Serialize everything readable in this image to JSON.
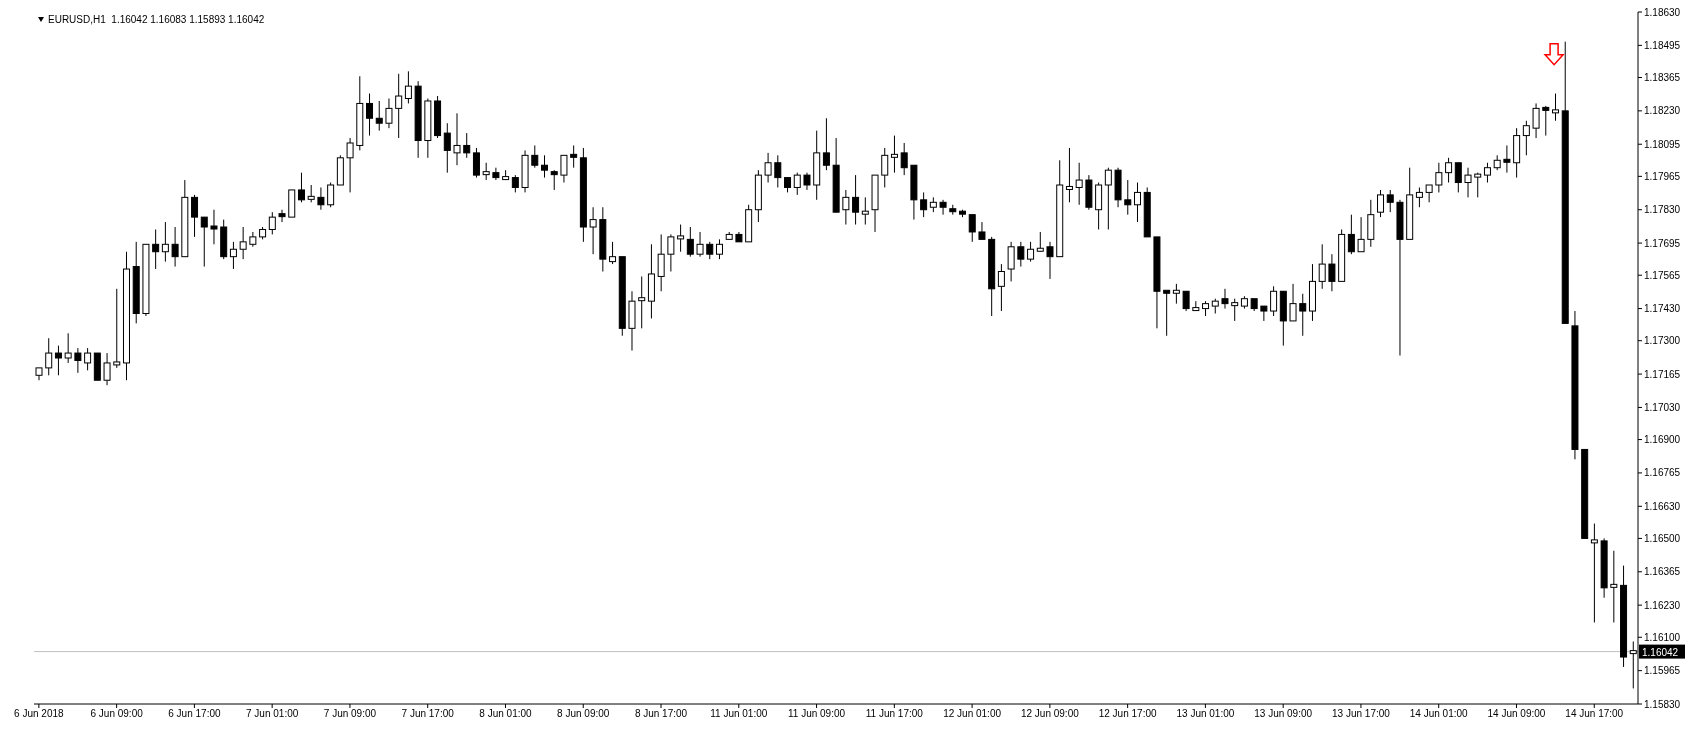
{
  "chart_data": {
    "type": "candlestick",
    "title": "EURUSD,H1  1.16042 1.16083 1.15893 1.16042",
    "color": "#000000",
    "categories": [
      "6 Jun 2018",
      null,
      null,
      null,
      null,
      null,
      null,
      null,
      "6 Jun 09:00",
      null,
      null,
      null,
      null,
      null,
      null,
      null,
      "6 Jun 17:00",
      null,
      null,
      null,
      null,
      null,
      null,
      null,
      "7 Jun 01:00",
      null,
      null,
      null,
      null,
      null,
      null,
      null,
      "7 Jun 09:00",
      null,
      null,
      null,
      null,
      null,
      null,
      null,
      "7 Jun 17:00",
      null,
      null,
      null,
      null,
      null,
      null,
      null,
      "8 Jun 01:00",
      null,
      null,
      null,
      null,
      null,
      null,
      null,
      "8 Jun 09:00",
      null,
      null,
      null,
      null,
      null,
      null,
      null,
      "8 Jun 17:00",
      null,
      null,
      null,
      null,
      null,
      null,
      null,
      "11 Jun 01:00",
      null,
      null,
      null,
      null,
      null,
      null,
      null,
      "11 Jun 09:00",
      null,
      null,
      null,
      null,
      null,
      null,
      null,
      "11 Jun 17:00",
      null,
      null,
      null,
      null,
      null,
      null,
      null,
      "12 Jun 01:00",
      null,
      null,
      null,
      null,
      null,
      null,
      null,
      "12 Jun 09:00",
      null,
      null,
      null,
      null,
      null,
      null,
      null,
      "12 Jun 17:00",
      null,
      null,
      null,
      null,
      null,
      null,
      null,
      "13 Jun 01:00",
      null,
      null,
      null,
      null,
      null,
      null,
      null,
      "13 Jun 09:00",
      null,
      null,
      null,
      null,
      null,
      null,
      null,
      "13 Jun 17:00",
      null,
      null,
      null,
      null,
      null,
      null,
      null,
      "14 Jun 01:00",
      null,
      null,
      null,
      null,
      null,
      null,
      null,
      "14 Jun 09:00",
      null,
      null,
      null,
      null,
      null,
      null,
      null,
      "14 Jun 17:00",
      null,
      null,
      null,
      null
    ],
    "ohlc": [
      [
        1.1716,
        1.1719,
        1.1714,
        1.1719
      ],
      [
        1.1719,
        1.1731,
        1.1716,
        1.1725
      ],
      [
        1.1725,
        1.1728,
        1.1716,
        1.1723
      ],
      [
        1.1723,
        1.1733,
        1.1721,
        1.1725
      ],
      [
        1.1725,
        1.1727,
        1.1717,
        1.1722
      ],
      [
        1.1721,
        1.1727,
        1.1718,
        1.1725
      ],
      [
        1.1725,
        1.1725,
        1.1714,
        1.1714
      ],
      [
        1.1714,
        1.1725,
        1.1712,
        1.1721
      ],
      [
        1.1721,
        1.1751,
        1.1719,
        1.1721
      ],
      [
        1.1721,
        1.1766,
        1.1714,
        1.1759
      ],
      [
        1.176,
        1.177,
        1.1737,
        1.1741
      ],
      [
        1.1741,
        1.1769,
        1.174,
        1.1769
      ],
      [
        1.1769,
        1.1775,
        1.1759,
        1.1766
      ],
      [
        1.1766,
        1.1778,
        1.1762,
        1.1769
      ],
      [
        1.1769,
        1.1776,
        1.176,
        1.1764
      ],
      [
        1.1764,
        1.1795,
        1.1764,
        1.1788
      ],
      [
        1.1788,
        1.1789,
        1.1772,
        1.178
      ],
      [
        1.178,
        1.178,
        1.176,
        1.1776
      ],
      [
        1.1776,
        1.1783,
        1.1769,
        1.1775
      ],
      [
        1.1776,
        1.1779,
        1.1763,
        1.1764
      ],
      [
        1.1764,
        1.177,
        1.1759,
        1.1767
      ],
      [
        1.1767,
        1.1776,
        1.1763,
        1.177
      ],
      [
        1.1769,
        1.1774,
        1.1768,
        1.1772
      ],
      [
        1.1772,
        1.1776,
        1.1771,
        1.1775
      ],
      [
        1.1775,
        1.1782,
        1.1773,
        1.178
      ],
      [
        1.1781,
        1.1783,
        1.1778,
        1.178
      ],
      [
        1.178,
        1.1791,
        1.178,
        1.1791
      ],
      [
        1.1791,
        1.1798,
        1.1786,
        1.1787
      ],
      [
        1.1787,
        1.1793,
        1.1786,
        1.1788
      ],
      [
        1.1788,
        1.1792,
        1.1783,
        1.1785
      ],
      [
        1.1785,
        1.1794,
        1.1784,
        1.1793
      ],
      [
        1.1793,
        1.1805,
        1.1793,
        1.1804
      ],
      [
        1.1804,
        1.1812,
        1.179,
        1.181
      ],
      [
        1.1809,
        1.1837,
        1.1807,
        1.1826
      ],
      [
        1.1826,
        1.183,
        1.1813,
        1.182
      ],
      [
        1.182,
        1.1827,
        1.1815,
        1.1818
      ],
      [
        1.1818,
        1.1828,
        1.1816,
        1.1824
      ],
      [
        1.1824,
        1.1838,
        1.1812,
        1.1829
      ],
      [
        1.1828,
        1.1839,
        1.1826,
        1.1833
      ],
      [
        1.1833,
        1.1835,
        1.1804,
        1.1811
      ],
      [
        1.1811,
        1.1828,
        1.1804,
        1.1827
      ],
      [
        1.1827,
        1.1829,
        1.1812,
        1.1813
      ],
      [
        1.1814,
        1.1818,
        1.1798,
        1.1807
      ],
      [
        1.1806,
        1.1822,
        1.1801,
        1.1809
      ],
      [
        1.1809,
        1.1814,
        1.1804,
        1.1806
      ],
      [
        1.1806,
        1.1808,
        1.1796,
        1.1797
      ],
      [
        1.1797,
        1.1802,
        1.1795,
        1.1798
      ],
      [
        1.1798,
        1.18,
        1.1795,
        1.1796
      ],
      [
        1.1796,
        1.1799,
        1.1795,
        1.1796
      ],
      [
        1.1796,
        1.1797,
        1.179,
        1.1792
      ],
      [
        1.1792,
        1.1807,
        1.179,
        1.1805
      ],
      [
        1.1805,
        1.1809,
        1.18,
        1.1801
      ],
      [
        1.1801,
        1.1805,
        1.1796,
        1.1799
      ],
      [
        1.1798,
        1.1799,
        1.1791,
        1.1797
      ],
      [
        1.1797,
        1.1805,
        1.1794,
        1.1805
      ],
      [
        1.1805,
        1.1809,
        1.18,
        1.1804
      ],
      [
        1.1804,
        1.1808,
        1.177,
        1.1776
      ],
      [
        1.1776,
        1.1784,
        1.1765,
        1.1779
      ],
      [
        1.1779,
        1.1784,
        1.1758,
        1.1763
      ],
      [
        1.1762,
        1.177,
        1.1761,
        1.1764
      ],
      [
        1.1764,
        1.1764,
        1.1732,
        1.1735
      ],
      [
        1.1735,
        1.175,
        1.1726,
        1.1746
      ],
      [
        1.1747,
        1.1756,
        1.1735,
        1.1747
      ],
      [
        1.1746,
        1.1769,
        1.1739,
        1.1757
      ],
      [
        1.1756,
        1.1773,
        1.175,
        1.1765
      ],
      [
        1.1765,
        1.1773,
        1.1758,
        1.1772
      ],
      [
        1.1772,
        1.1777,
        1.1766,
        1.1772
      ],
      [
        1.1771,
        1.1776,
        1.1764,
        1.1765
      ],
      [
        1.1765,
        1.1774,
        1.1764,
        1.1769
      ],
      [
        1.1769,
        1.177,
        1.1763,
        1.1765
      ],
      [
        1.1765,
        1.1771,
        1.1763,
        1.1769
      ],
      [
        1.1771,
        1.1774,
        1.1771,
        1.1773
      ],
      [
        1.1773,
        1.1774,
        1.177,
        1.177
      ],
      [
        1.177,
        1.1785,
        1.177,
        1.1783
      ],
      [
        1.1783,
        1.1799,
        1.1778,
        1.1797
      ],
      [
        1.1797,
        1.1806,
        1.1794,
        1.1802
      ],
      [
        1.1802,
        1.1805,
        1.1792,
        1.1796
      ],
      [
        1.1796,
        1.1796,
        1.179,
        1.1792
      ],
      [
        1.1792,
        1.1798,
        1.1789,
        1.1797
      ],
      [
        1.1797,
        1.1798,
        1.1791,
        1.1793
      ],
      [
        1.1793,
        1.1815,
        1.1787,
        1.1806
      ],
      [
        1.1806,
        1.182,
        1.1799,
        1.1801
      ],
      [
        1.1801,
        1.1812,
        1.1782,
        1.1782
      ],
      [
        1.1783,
        1.1791,
        1.1777,
        1.1788
      ],
      [
        1.1788,
        1.1797,
        1.1777,
        1.1782
      ],
      [
        1.1782,
        1.1788,
        1.1777,
        1.1782
      ],
      [
        1.1783,
        1.1797,
        1.1774,
        1.1797
      ],
      [
        1.1797,
        1.1808,
        1.1792,
        1.1805
      ],
      [
        1.1805,
        1.1813,
        1.1798,
        1.1805
      ],
      [
        1.1806,
        1.181,
        1.1797,
        1.18
      ],
      [
        1.1801,
        1.1801,
        1.1779,
        1.1787
      ],
      [
        1.1787,
        1.179,
        1.178,
        1.1783
      ],
      [
        1.1784,
        1.1788,
        1.1782,
        1.1786
      ],
      [
        1.1786,
        1.1787,
        1.1781,
        1.1784
      ],
      [
        1.1783,
        1.1785,
        1.1781,
        1.1782
      ],
      [
        1.1782,
        1.1783,
        1.178,
        1.1781
      ],
      [
        1.1781,
        1.1781,
        1.177,
        1.1774
      ],
      [
        1.1774,
        1.1778,
        1.1771,
        1.1771
      ],
      [
        1.1771,
        1.1772,
        1.174,
        1.1751
      ],
      [
        1.1752,
        1.1761,
        1.1742,
        1.1758
      ],
      [
        1.1759,
        1.177,
        1.1754,
        1.1768
      ],
      [
        1.1768,
        1.177,
        1.176,
        1.1763
      ],
      [
        1.1763,
        1.177,
        1.1762,
        1.1767
      ],
      [
        1.1767,
        1.1774,
        1.1766,
        1.1767
      ],
      [
        1.1768,
        1.177,
        1.1755,
        1.1764
      ],
      [
        1.1764,
        1.1803,
        1.1764,
        1.1793
      ],
      [
        1.1792,
        1.1808,
        1.1786,
        1.1792
      ],
      [
        1.1792,
        1.1802,
        1.1785,
        1.1795
      ],
      [
        1.1795,
        1.1797,
        1.1783,
        1.1784
      ],
      [
        1.1783,
        1.1794,
        1.1775,
        1.1793
      ],
      [
        1.1793,
        1.18,
        1.1775,
        1.1799
      ],
      [
        1.1799,
        1.18,
        1.1784,
        1.1787
      ],
      [
        1.1787,
        1.1795,
        1.1781,
        1.1785
      ],
      [
        1.1785,
        1.1794,
        1.1778,
        1.179
      ],
      [
        1.179,
        1.1792,
        1.1772,
        1.1772
      ],
      [
        1.1772,
        1.1772,
        1.1735,
        1.175
      ],
      [
        1.175,
        1.175,
        1.1732,
        1.1749
      ],
      [
        1.1749,
        1.1753,
        1.1745,
        1.175
      ],
      [
        1.175,
        1.175,
        1.1742,
        1.1743
      ],
      [
        1.1743,
        1.1746,
        1.1742,
        1.1743
      ],
      [
        1.1743,
        1.1746,
        1.174,
        1.1745
      ],
      [
        1.1744,
        1.1747,
        1.1741,
        1.1746
      ],
      [
        1.1747,
        1.1751,
        1.1743,
        1.1745
      ],
      [
        1.1745,
        1.1747,
        1.1738,
        1.1745
      ],
      [
        1.1744,
        1.1748,
        1.1743,
        1.1747
      ],
      [
        1.1747,
        1.1747,
        1.1742,
        1.1743
      ],
      [
        1.1744,
        1.1744,
        1.1738,
        1.1742
      ],
      [
        1.1742,
        1.1752,
        1.174,
        1.175
      ],
      [
        1.175,
        1.175,
        1.1728,
        1.1738
      ],
      [
        1.1738,
        1.1753,
        1.1738,
        1.1745
      ],
      [
        1.1745,
        1.1749,
        1.1732,
        1.1742
      ],
      [
        1.1742,
        1.1761,
        1.1738,
        1.1754
      ],
      [
        1.1754,
        1.1769,
        1.1751,
        1.1761
      ],
      [
        1.1761,
        1.1765,
        1.175,
        1.1754
      ],
      [
        1.1754,
        1.1775,
        1.1754,
        1.1773
      ],
      [
        1.1773,
        1.1781,
        1.1765,
        1.1766
      ],
      [
        1.1766,
        1.178,
        1.1766,
        1.1771
      ],
      [
        1.1771,
        1.1787,
        1.1768,
        1.1781
      ],
      [
        1.1782,
        1.1791,
        1.178,
        1.1789
      ],
      [
        1.1789,
        1.1791,
        1.1782,
        1.1786
      ],
      [
        1.1786,
        1.1787,
        1.1724,
        1.1771
      ],
      [
        1.1771,
        1.18,
        1.1771,
        1.1789
      ],
      [
        1.1788,
        1.1792,
        1.1784,
        1.179
      ],
      [
        1.179,
        1.1793,
        1.1786,
        1.1793
      ],
      [
        1.1793,
        1.1802,
        1.179,
        1.1798
      ],
      [
        1.1798,
        1.1804,
        1.1794,
        1.1802
      ],
      [
        1.1802,
        1.1802,
        1.179,
        1.1794
      ],
      [
        1.1794,
        1.18,
        1.1788,
        1.1797
      ],
      [
        1.1797,
        1.1798,
        1.1788,
        1.1797
      ],
      [
        1.1797,
        1.1802,
        1.1794,
        1.18
      ],
      [
        1.18,
        1.1805,
        1.1799,
        1.1803
      ],
      [
        1.1803,
        1.1809,
        1.1798,
        1.1802
      ],
      [
        1.1802,
        1.1816,
        1.1796,
        1.1813
      ],
      [
        1.1813,
        1.1819,
        1.1805,
        1.1817
      ],
      [
        1.1816,
        1.1826,
        1.1812,
        1.1824
      ],
      [
        1.1824,
        1.1825,
        1.1813,
        1.1823
      ],
      [
        1.1823,
        1.183,
        1.1819,
        1.1823
      ],
      [
        1.1823,
        1.1851,
        1.1737,
        1.1737
      ],
      [
        1.1736,
        1.1742,
        1.1682,
        1.1686
      ],
      [
        1.1686,
        1.1686,
        1.165,
        1.165
      ],
      [
        1.1649,
        1.1656,
        1.1616,
        1.1649
      ],
      [
        1.1649,
        1.165,
        1.1626,
        1.163
      ],
      [
        1.163,
        1.1645,
        1.1616,
        1.1631
      ],
      [
        1.1631,
        1.1639,
        1.1598,
        1.1602
      ],
      [
        1.16042,
        1.16083,
        1.15893,
        1.16042
      ]
    ],
    "ylim": [
      1.1583,
      1.1863
    ],
    "yticks": [
      {
        "value": 1.1863,
        "label": "1.18630"
      },
      {
        "value": 1.18495,
        "label": "1.18495"
      },
      {
        "value": 1.18365,
        "label": "1.18365"
      },
      {
        "value": 1.1823,
        "label": "1.18230"
      },
      {
        "value": 1.18095,
        "label": "1.18095"
      },
      {
        "value": 1.17965,
        "label": "1.17965"
      },
      {
        "value": 1.1783,
        "label": "1.17830"
      },
      {
        "value": 1.17695,
        "label": "1.17695"
      },
      {
        "value": 1.17565,
        "label": "1.17565"
      },
      {
        "value": 1.1743,
        "label": "1.17430"
      },
      {
        "value": 1.173,
        "label": "1.17300"
      },
      {
        "value": 1.17165,
        "label": "1.17165"
      },
      {
        "value": 1.1703,
        "label": "1.17030"
      },
      {
        "value": 1.169,
        "label": "1.16900"
      },
      {
        "value": 1.16765,
        "label": "1.16765"
      },
      {
        "value": 1.1663,
        "label": "1.16630"
      },
      {
        "value": 1.165,
        "label": "1.16500"
      },
      {
        "value": 1.16365,
        "label": "1.16365"
      },
      {
        "value": 1.1623,
        "label": "1.16230"
      },
      {
        "value": 1.161,
        "label": "1.16100"
      },
      {
        "value": 1.15965,
        "label": "1.15965"
      },
      {
        "value": 1.1583,
        "label": "1.15830"
      }
    ],
    "ref_lines": [
      {
        "axis": "y",
        "value": 1.16042,
        "label": "1.16042",
        "color": "#c0c0c0"
      }
    ]
  }
}
